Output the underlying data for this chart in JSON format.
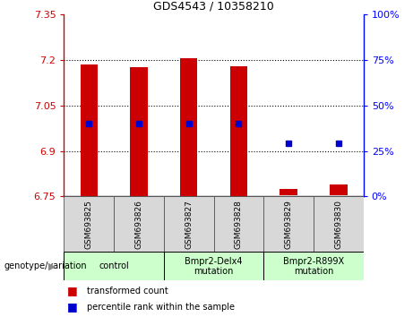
{
  "title": "GDS4543 / 10358210",
  "samples": [
    "GSM693825",
    "GSM693826",
    "GSM693827",
    "GSM693828",
    "GSM693829",
    "GSM693830"
  ],
  "groups": [
    {
      "label": "control",
      "indices": [
        0,
        1
      ],
      "color": "#ccffcc"
    },
    {
      "label": "Bmpr2-Delx4\nmutation",
      "indices": [
        2,
        3
      ],
      "color": "#ccffcc"
    },
    {
      "label": "Bmpr2-R899X\nmutation",
      "indices": [
        4,
        5
      ],
      "color": "#ccffcc"
    }
  ],
  "bar_bottoms": [
    6.75,
    6.75,
    6.75,
    6.75,
    6.755,
    6.755
  ],
  "bar_tops": [
    7.185,
    7.175,
    7.205,
    7.18,
    6.775,
    6.79
  ],
  "percentile_values": [
    6.99,
    6.99,
    6.99,
    6.99,
    6.925,
    6.925
  ],
  "ylim": [
    6.75,
    7.35
  ],
  "yticks_left": [
    6.75,
    6.9,
    7.05,
    7.2,
    7.35
  ],
  "yticks_right": [
    0,
    25,
    50,
    75,
    100
  ],
  "bar_color": "#cc0000",
  "dot_color": "#0000cc",
  "legend_items": [
    {
      "label": "transformed count",
      "color": "#cc0000"
    },
    {
      "label": "percentile rank within the sample",
      "color": "#0000cc"
    }
  ],
  "genotype_label": "genotype/variation"
}
